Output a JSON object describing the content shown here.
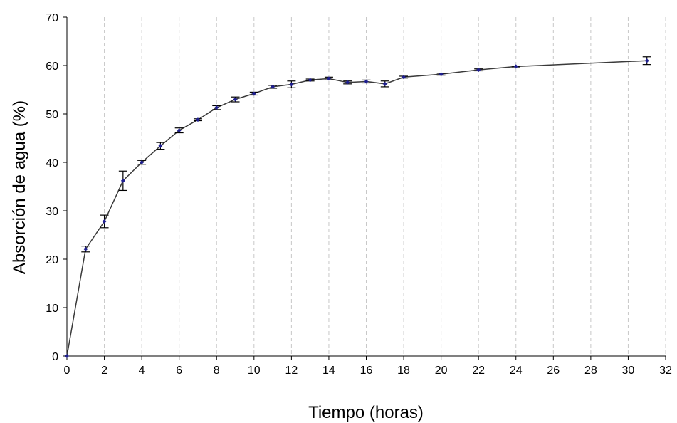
{
  "chart_data": {
    "type": "line",
    "title": "",
    "xlabel": "Tiempo (horas)",
    "ylabel": "Absorción de agua (%)",
    "xlim": [
      0,
      32
    ],
    "ylim": [
      0,
      70
    ],
    "xticks": [
      0,
      2,
      4,
      6,
      8,
      10,
      12,
      14,
      16,
      18,
      20,
      22,
      24,
      26,
      28,
      30,
      32
    ],
    "yticks": [
      0,
      10,
      20,
      30,
      40,
      50,
      60,
      70
    ],
    "grid": "vertical-dashed",
    "legend": "none",
    "colors": {
      "line": "#3a3a3a",
      "marker": "#1f1f8f",
      "error_bar": "#000000",
      "grid": "#c8c8c8"
    },
    "series": [
      {
        "x": [
          0,
          1,
          2,
          3,
          4,
          5,
          6,
          7,
          8,
          9,
          10,
          11,
          12,
          13,
          14,
          15,
          16,
          17,
          18,
          20,
          22,
          24,
          31
        ],
        "y": [
          0,
          22.1,
          27.8,
          36.2,
          40.0,
          43.4,
          46.6,
          48.8,
          51.3,
          53.0,
          54.2,
          55.6,
          56.1,
          57.0,
          57.3,
          56.5,
          56.7,
          56.2,
          57.6,
          58.2,
          59.1,
          59.8,
          61.0
        ],
        "error": [
          0,
          0.6,
          1.3,
          2.0,
          0.4,
          0.7,
          0.5,
          0.2,
          0.4,
          0.5,
          0.3,
          0.3,
          0.7,
          0.2,
          0.3,
          0.3,
          0.3,
          0.6,
          0.2,
          0.2,
          0.2,
          0.1,
          0.8
        ]
      }
    ]
  }
}
